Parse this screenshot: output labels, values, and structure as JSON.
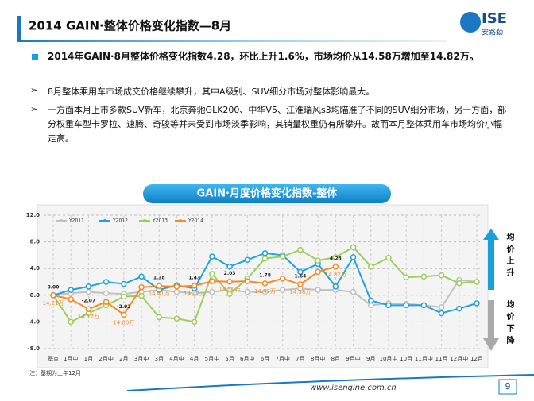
{
  "header": {
    "title": "2014 GAIN·整体价格变化指数—8月",
    "logo": "ISE",
    "logo_sub": "安路勤"
  },
  "bullets": [
    "2014年GAIN·8月整体价格变化指数4.28，环比上升1.6%，市场均价从14.58万增加至14.82万。",
    "8月整体乘用车市场成交价格继续攀升，其中A级别、SUV细分市场对整体影响最大。",
    "一方面本月上市多款SUV新车，北京奔驰GLK200、中华V5、江淮瑞风s3均瞄准了不同的SUV细分市场，另一方面，部分权重车型卡罗拉、速腾、奇骏等并未受到市场淡季影响，其销量权重仍有所攀升。故而本月整体乘用车市场均价小幅走高。"
  ],
  "chart_data": {
    "type": "line",
    "title": "GAIN·月度价格变化指数-整体",
    "categories": [
      "基点",
      "1月中",
      "1月",
      "2月中",
      "2月",
      "3月中",
      "3月",
      "4月中",
      "4月",
      "5月中",
      "5月",
      "6月中",
      "6月",
      "7月中",
      "7月",
      "8月中",
      "8月",
      "9月中",
      "9月",
      "10月中",
      "10月",
      "11月中",
      "11月",
      "12月中",
      "12月"
    ],
    "series": [
      {
        "name": "Y2011",
        "color": "#c0c0c0",
        "values": [
          0,
          0.3,
          0.5,
          0.3,
          0.2,
          0.5,
          0.8,
          0.5,
          0.3,
          0.5,
          0.8,
          0.5,
          0.5,
          0.8,
          1.0,
          0.8,
          0.8,
          0.5,
          -1.5,
          -1.2,
          -1.3,
          -1.5,
          -1.8,
          2.3,
          2.0
        ]
      },
      {
        "name": "Y2012",
        "color": "#1fa3e0",
        "values": [
          0,
          0.8,
          1.3,
          2.0,
          1.7,
          2.8,
          0.8,
          1.5,
          1.0,
          5.8,
          4.3,
          5.3,
          6.3,
          6.0,
          3.5,
          4.7,
          1.3,
          5.7,
          -0.8,
          -1.5,
          -1.5,
          -1.5,
          -2.7,
          -2.0,
          -1.2
        ]
      },
      {
        "name": "Y2013",
        "color": "#9dce5b",
        "values": [
          0,
          -4.0,
          -2.7,
          -1.5,
          -0.2,
          -0.1,
          -3.3,
          -3.5,
          -4.0,
          3.2,
          0.2,
          2.5,
          5.5,
          5.8,
          6.8,
          5.2,
          5.7,
          7.2,
          4.3,
          5.6,
          2.7,
          2.8,
          3.0,
          1.8,
          2.0
        ]
      },
      {
        "name": "Y2014",
        "color": "#f28c28",
        "values": [
          0,
          -0.6,
          -2.07,
          -1.0,
          -2.92,
          1.2,
          1.38,
          1.3,
          1.43,
          2.1,
          2.03,
          2.1,
          1.78,
          2.5,
          1.64,
          3.5,
          4.28,
          null,
          null,
          null,
          null,
          null,
          null,
          null,
          null
        ],
        "value_labels": [
          "0.00",
          null,
          "-2.07",
          null,
          "-2.92",
          null,
          "1.38",
          null,
          "1.43",
          null,
          "2.03",
          null,
          "1.78",
          null,
          "1.64",
          null,
          "4.28",
          null,
          null,
          null,
          null,
          null,
          null,
          null,
          null
        ]
      }
    ],
    "price_annotations": [
      {
        "category": "基点",
        "text": "14.21万"
      },
      {
        "category": "1月",
        "text": "14.17万"
      },
      {
        "category": "2月",
        "text": "14.00万"
      },
      {
        "category": "3月",
        "text": "14.41万"
      },
      {
        "category": "4月",
        "text": "14.42万"
      },
      {
        "category": "5月",
        "text": "14.50万"
      },
      {
        "category": "6月",
        "text": "14.47万"
      },
      {
        "category": "7月",
        "text": "14.58万"
      },
      {
        "category": "8月",
        "text": "14.82万"
      }
    ],
    "ylim": [
      -8,
      12
    ],
    "yticks": [
      {
        "value": -8,
        "label": "-8.0"
      },
      {
        "value": -4,
        "label": "-4.0"
      },
      {
        "value": 0,
        "label": "0.0"
      },
      {
        "value": 4,
        "label": "4.0"
      },
      {
        "value": 8,
        "label": "8.0"
      },
      {
        "value": 12,
        "label": "12.0"
      }
    ],
    "grid": true,
    "legend": "top",
    "side_labels": {
      "up": "均价上升",
      "down": "均价下降"
    },
    "note": "注：基期为上年12月"
  },
  "footer": {
    "url": "www.isengine.com.cn",
    "page": "9"
  }
}
